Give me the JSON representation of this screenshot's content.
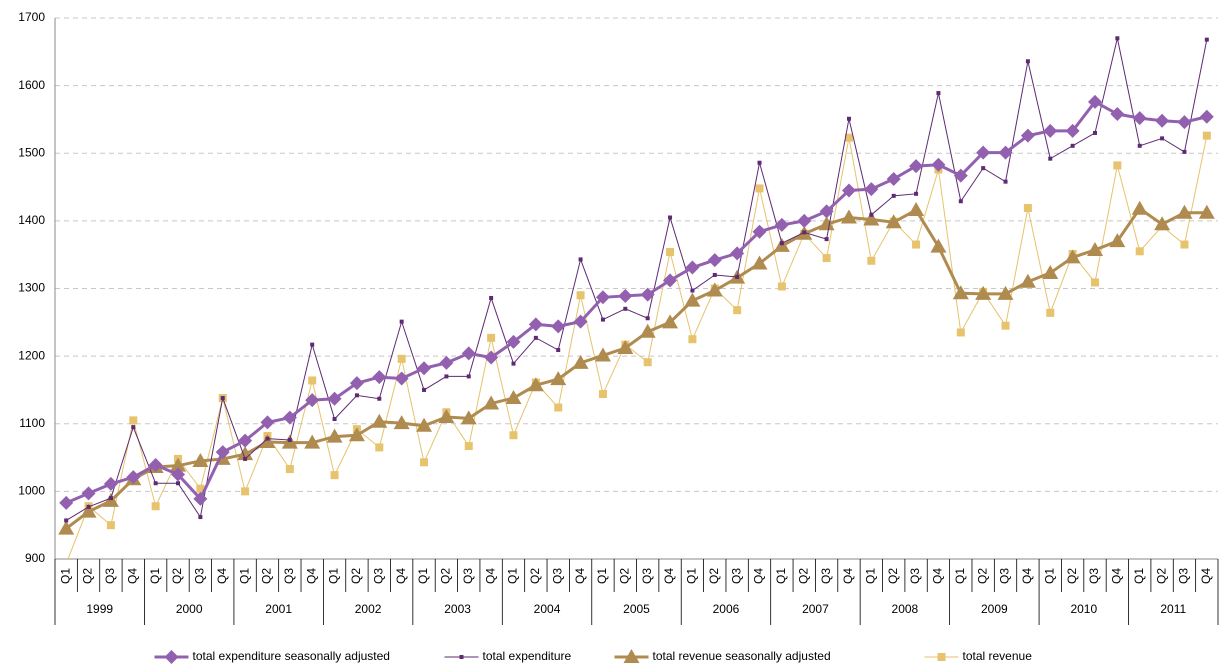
{
  "chart_data": {
    "type": "line",
    "categories": [
      "Q1",
      "Q2",
      "Q3",
      "Q4",
      "Q1",
      "Q2",
      "Q3",
      "Q4",
      "Q1",
      "Q2",
      "Q3",
      "Q4",
      "Q1",
      "Q2",
      "Q3",
      "Q4",
      "Q1",
      "Q2",
      "Q3",
      "Q4",
      "Q1",
      "Q2",
      "Q3",
      "Q4",
      "Q1",
      "Q2",
      "Q3",
      "Q4",
      "Q1",
      "Q2",
      "Q3",
      "Q4",
      "Q1",
      "Q2",
      "Q3",
      "Q4",
      "Q1",
      "Q2",
      "Q3",
      "Q4",
      "Q1",
      "Q2",
      "Q3",
      "Q4",
      "Q1",
      "Q2",
      "Q3",
      "Q4",
      "Q1",
      "Q2",
      "Q3",
      "Q4"
    ],
    "x_groups": [
      "1999",
      "2000",
      "2001",
      "2002",
      "2003",
      "2004",
      "2005",
      "2006",
      "2007",
      "2008",
      "2009",
      "2010",
      "2011"
    ],
    "ylim": [
      900,
      1700
    ],
    "yticks": [
      900,
      1000,
      1100,
      1200,
      1300,
      1400,
      1500,
      1600,
      1700
    ],
    "grid": true,
    "legend_position": "bottom",
    "series": [
      {
        "name": "total expenditure seasonally adjusted",
        "color": "#9360b0",
        "line_width": 3,
        "marker": "diamond",
        "values": [
          983,
          997,
          1011,
          1021,
          1039,
          1025,
          989,
          1058,
          1075,
          1102,
          1109,
          1135,
          1137,
          1160,
          1169,
          1167,
          1182,
          1190,
          1204,
          1198,
          1221,
          1247,
          1244,
          1251,
          1287,
          1289,
          1291,
          1312,
          1331,
          1342,
          1352,
          1384,
          1394,
          1400,
          1414,
          1445,
          1447,
          1462,
          1481,
          1483,
          1467,
          1501,
          1501,
          1526,
          1533,
          1533,
          1576,
          1558,
          1552,
          1548,
          1546,
          1554
        ]
      },
      {
        "name": "total expenditure",
        "color": "#5e2a72",
        "line_width": 1,
        "marker": "small-square",
        "values": [
          957,
          977,
          990,
          1095,
          1012,
          1012,
          962,
          1138,
          1048,
          1078,
          1076,
          1217,
          1107,
          1142,
          1137,
          1251,
          1150,
          1170,
          1170,
          1286,
          1189,
          1227,
          1209,
          1343,
          1254,
          1270,
          1256,
          1405,
          1297,
          1320,
          1317,
          1486,
          1367,
          1383,
          1373,
          1551,
          1409,
          1437,
          1440,
          1589,
          1429,
          1478,
          1458,
          1636,
          1492,
          1511,
          1530,
          1670,
          1511,
          1522,
          1502,
          1668
        ]
      },
      {
        "name": "total revenue seasonally adjusted",
        "color": "#b08b4f",
        "line_width": 3,
        "marker": "triangle",
        "values": [
          945,
          970,
          986,
          1018,
          1036,
          1038,
          1045,
          1048,
          1055,
          1073,
          1072,
          1072,
          1081,
          1083,
          1103,
          1101,
          1097,
          1110,
          1108,
          1130,
          1138,
          1157,
          1166,
          1190,
          1201,
          1212,
          1236,
          1250,
          1282,
          1297,
          1316,
          1337,
          1363,
          1381,
          1395,
          1405,
          1402,
          1398,
          1416,
          1362,
          1293,
          1292,
          1292,
          1310,
          1323,
          1346,
          1357,
          1370,
          1418,
          1395,
          1412,
          1412
        ]
      },
      {
        "name": "total revenue",
        "color": "#e6c36c",
        "line_width": 1,
        "marker": "square",
        "values": [
          893,
          978,
          950,
          1105,
          978,
          1048,
          1004,
          1138,
          1000,
          1082,
          1033,
          1164,
          1024,
          1092,
          1065,
          1196,
          1043,
          1117,
          1067,
          1227,
          1083,
          1161,
          1124,
          1290,
          1144,
          1217,
          1191,
          1354,
          1225,
          1300,
          1268,
          1448,
          1303,
          1381,
          1345,
          1523,
          1341,
          1399,
          1365,
          1476,
          1235,
          1295,
          1245,
          1419,
          1264,
          1351,
          1309,
          1482,
          1355,
          1392,
          1365,
          1526
        ]
      }
    ]
  }
}
